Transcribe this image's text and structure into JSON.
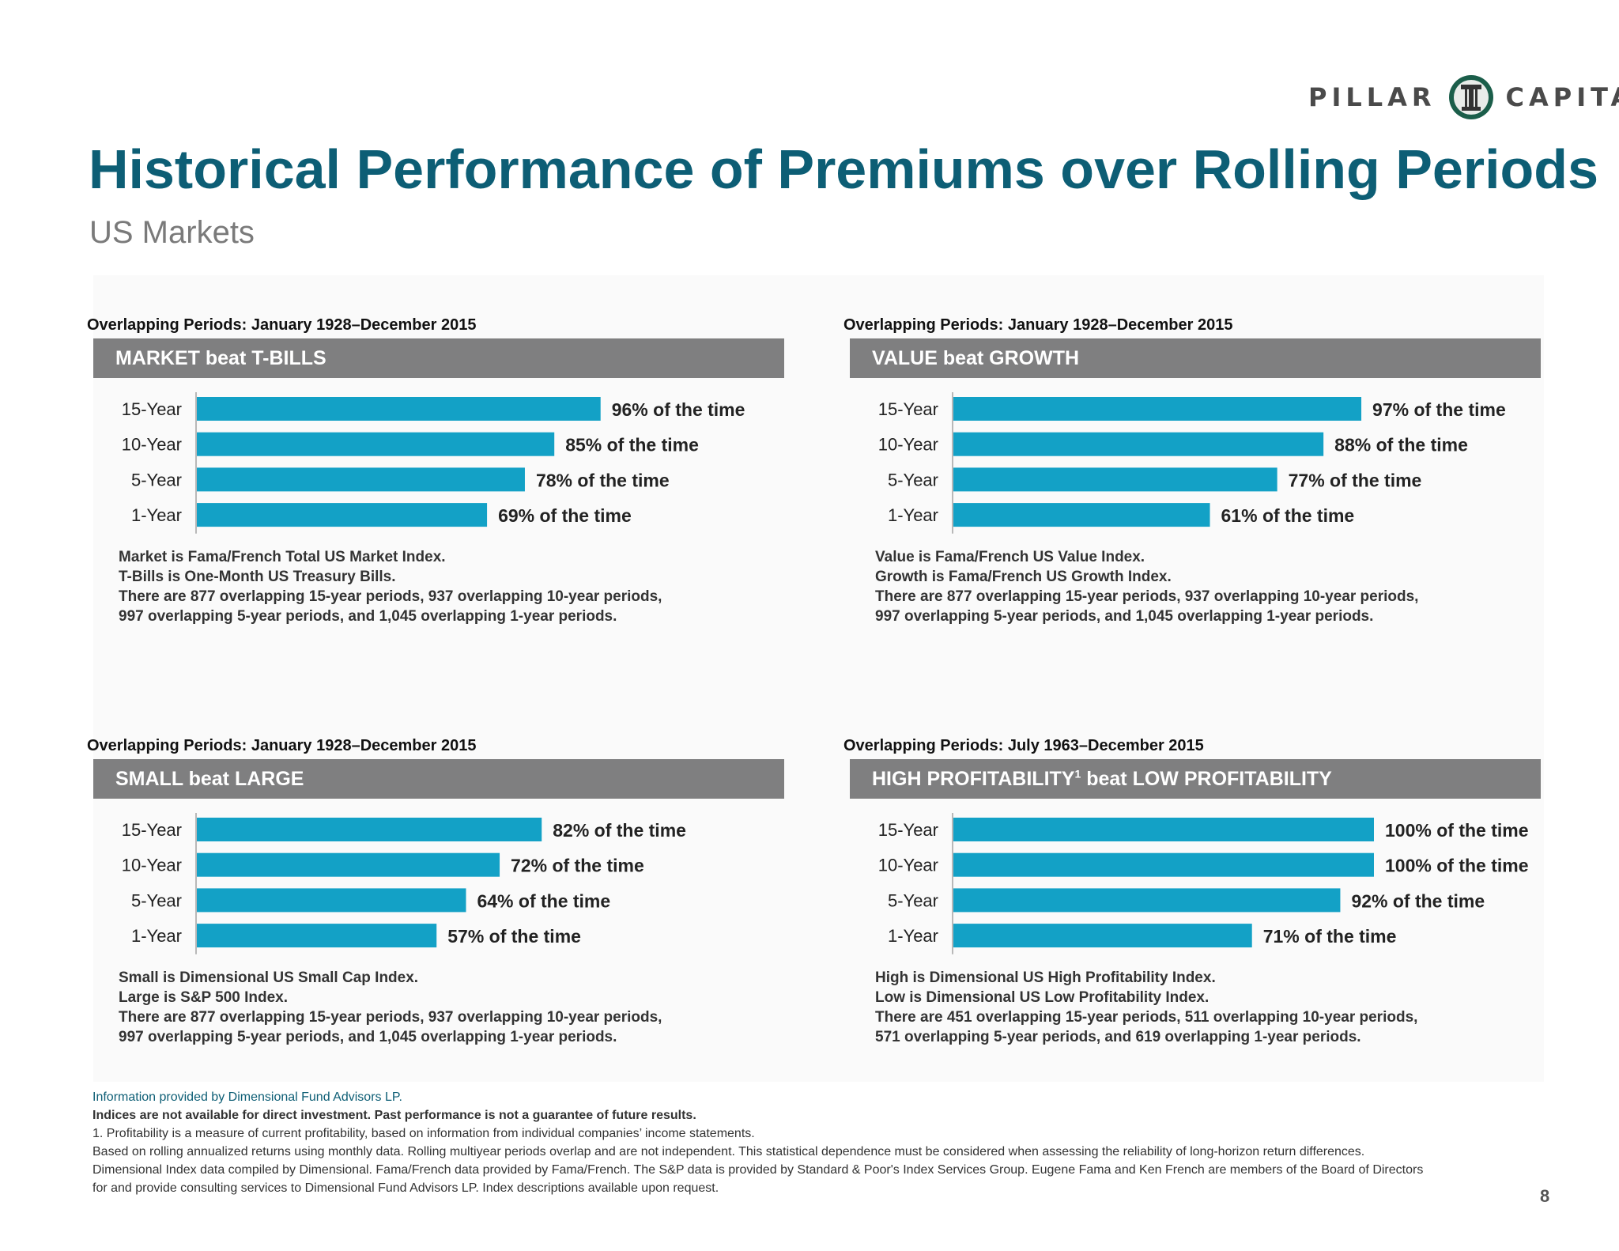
{
  "brand": {
    "left": "PILLAR",
    "right": "CAPITAL",
    "accent": "#0d5e75",
    "bar_color": "#13a1c6",
    "band_color": "#7f7f80"
  },
  "title": "Historical Performance of Premiums over Rolling Periods",
  "subtitle": "US Markets",
  "chart_data": [
    {
      "type": "bar",
      "orientation": "horizontal",
      "period": "Overlapping Periods: January 1928–December 2015",
      "title": "MARKET beat T-BILLS",
      "title_sup": "",
      "title_suffix": "",
      "categories": [
        "15-Year",
        "10-Year",
        "5-Year",
        "1-Year"
      ],
      "values": [
        96,
        85,
        78,
        69
      ],
      "unit": "%",
      "labels": [
        "96% of the time",
        "85% of the time",
        "78% of the time",
        "69% of the time"
      ],
      "xlim": [
        0,
        100
      ],
      "notes": [
        "Market is Fama/French Total US Market Index.",
        "T-Bills is One-Month US Treasury Bills.",
        "There are 877 overlapping 15-year periods, 937 overlapping 10-year periods,",
        "997 overlapping 5-year periods, and 1,045 overlapping 1-year periods."
      ]
    },
    {
      "type": "bar",
      "orientation": "horizontal",
      "period": "Overlapping Periods: January 1928–December 2015",
      "title": "VALUE beat GROWTH",
      "title_sup": "",
      "title_suffix": "",
      "categories": [
        "15-Year",
        "10-Year",
        "5-Year",
        "1-Year"
      ],
      "values": [
        97,
        88,
        77,
        61
      ],
      "unit": "%",
      "labels": [
        "97% of the time",
        "88% of the time",
        "77% of the time",
        "61% of the time"
      ],
      "xlim": [
        0,
        100
      ],
      "notes": [
        "Value is Fama/French US Value Index.",
        "Growth is Fama/French US Growth Index.",
        "There are 877 overlapping 15-year periods, 937 overlapping 10-year periods,",
        "997 overlapping 5-year periods, and 1,045 overlapping 1-year periods."
      ]
    },
    {
      "type": "bar",
      "orientation": "horizontal",
      "period": "Overlapping Periods: January 1928–December 2015",
      "title": "SMALL beat LARGE",
      "title_sup": "",
      "title_suffix": "",
      "categories": [
        "15-Year",
        "10-Year",
        "5-Year",
        "1-Year"
      ],
      "values": [
        82,
        72,
        64,
        57
      ],
      "unit": "%",
      "labels": [
        "82% of the time",
        "72% of the time",
        "64% of the time",
        "57% of the time"
      ],
      "xlim": [
        0,
        100
      ],
      "notes": [
        "Small is Dimensional US Small Cap Index.",
        "Large is S&P 500 Index.",
        "There are 877 overlapping 15-year periods, 937 overlapping 10-year periods,",
        "997 overlapping 5-year periods, and 1,045 overlapping 1-year periods."
      ]
    },
    {
      "type": "bar",
      "orientation": "horizontal",
      "period": "Overlapping Periods: July 1963–December 2015",
      "title": "HIGH PROFITABILITY",
      "title_sup": "1",
      "title_suffix": " beat LOW PROFITABILITY",
      "categories": [
        "15-Year",
        "10-Year",
        "5-Year",
        "1-Year"
      ],
      "values": [
        100,
        100,
        92,
        71
      ],
      "unit": "%",
      "labels": [
        "100% of the time",
        "100% of the time",
        "92% of the time",
        "71% of the time"
      ],
      "xlim": [
        0,
        100
      ],
      "notes": [
        "High is Dimensional US High Profitability Index.",
        "Low is Dimensional US Low Profitability Index.",
        "There are 451 overlapping 15-year periods, 511 overlapping 10-year periods,",
        "571 overlapping 5-year periods, and 619 overlapping 1-year periods."
      ]
    }
  ],
  "footer": {
    "source": "Information provided by Dimensional Fund Advisors LP.",
    "disclaimer": "Indices are not available for direct investment. Past performance is not a guarantee of future results.",
    "lines": [
      "1. Profitability is a measure of current profitability, based on information from individual companies’ income statements.",
      "Based on rolling annualized returns using monthly data. Rolling multiyear periods overlap and are not independent. This statistical dependence must be considered when assessing the reliability of long-horizon return differences.",
      "Dimensional Index data compiled by Dimensional. Fama/French data provided by Fama/French. The S&P data is provided by Standard & Poor's Index Services Group. Eugene Fama and Ken French are members of the Board of Directors",
      "for and provide consulting services to Dimensional Fund Advisors LP. Index descriptions available upon request."
    ]
  },
  "page_number": "8"
}
